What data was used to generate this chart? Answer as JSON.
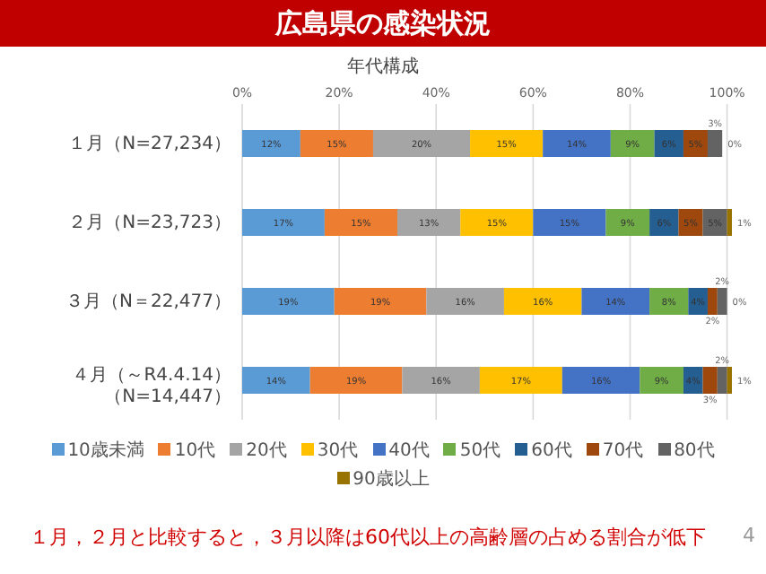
{
  "chart_data": {
    "type": "bar",
    "orientation": "horizontal",
    "stacked": true,
    "title": "広島県の感染状況",
    "subtitle": "年代構成",
    "categories": [
      "１月（N=27,234）",
      "２月（N=23,723）",
      "３月（N＝22,477）",
      "４月（～R4.4.14）（N=14,447）"
    ],
    "series": [
      {
        "name": "10歳未満",
        "color": "#5b9bd5",
        "values": [
          12,
          17,
          19,
          14
        ],
        "value_labels": [
          "12%",
          "17%",
          "19%",
          "14%"
        ]
      },
      {
        "name": "10代",
        "color": "#ed7d31",
        "values": [
          15,
          15,
          19,
          19
        ],
        "value_labels": [
          "15%",
          "15%",
          "19%",
          "19%"
        ]
      },
      {
        "name": "20代",
        "color": "#a5a5a5",
        "values": [
          20,
          13,
          16,
          16
        ],
        "value_labels": [
          "20%",
          "13%",
          "16%",
          "16%"
        ]
      },
      {
        "name": "30代",
        "color": "#ffc000",
        "values": [
          15,
          15,
          16,
          17
        ],
        "value_labels": [
          "15%",
          "15%",
          "16%",
          "17%"
        ]
      },
      {
        "name": "40代",
        "color": "#4472c4",
        "values": [
          14,
          15,
          14,
          16
        ],
        "value_labels": [
          "14%",
          "15%",
          "14%",
          "16%"
        ]
      },
      {
        "name": "50代",
        "color": "#70ad47",
        "values": [
          9,
          9,
          8,
          9
        ],
        "value_labels": [
          "9%",
          "9%",
          "8%",
          "9%"
        ]
      },
      {
        "name": "60代",
        "color": "#255e91",
        "values": [
          6,
          6,
          4,
          4
        ],
        "value_labels": [
          "6%",
          "6%",
          "4%",
          "4%"
        ]
      },
      {
        "name": "70代",
        "color": "#9e480e",
        "values": [
          5,
          5,
          2,
          3
        ],
        "value_labels": [
          "5%",
          "5%",
          "2%",
          "3%"
        ]
      },
      {
        "name": "80代",
        "color": "#636363",
        "values": [
          3,
          5,
          2,
          2
        ],
        "value_labels": [
          "3%",
          "5%",
          "2%",
          "2%"
        ]
      },
      {
        "name": "90歳以上",
        "color": "#997300",
        "values": [
          0,
          1,
          0,
          1
        ],
        "value_labels": [
          "0%",
          "1%",
          "0%",
          "1%"
        ]
      }
    ],
    "xlim": [
      0,
      101
    ],
    "xticks": [
      {
        "value": 0,
        "label": "0%"
      },
      {
        "value": 20,
        "label": "20%"
      },
      {
        "value": 40,
        "label": "40%"
      },
      {
        "value": 60,
        "label": "60%"
      },
      {
        "value": 80,
        "label": "80%"
      },
      {
        "value": 100,
        "label": "100%"
      }
    ],
    "grid": "x",
    "legend": "bottom",
    "annotations": [
      "１月，２月と比較すると，３月以降は60代以上の高齢層の占める割合が低下",
      "4"
    ]
  }
}
